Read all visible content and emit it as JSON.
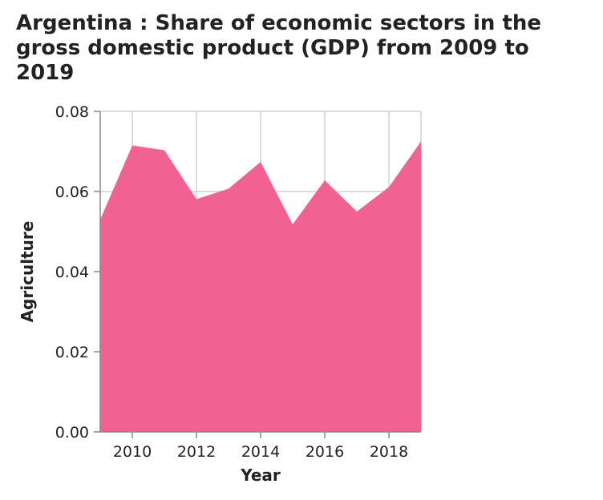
{
  "chart_data": {
    "type": "area",
    "title": "Argentina : Share of economic sectors in the gross domestic product (GDP) from 2009 to 2019",
    "xlabel": "Year",
    "ylabel": "Agriculture",
    "x": [
      2009,
      2010,
      2011,
      2012,
      2013,
      2014,
      2015,
      2016,
      2017,
      2018,
      2019
    ],
    "series": [
      {
        "values": [
          0.053,
          0.0715,
          0.0703,
          0.0581,
          0.0607,
          0.0674,
          0.0518,
          0.0628,
          0.055,
          0.0611,
          0.0725
        ]
      }
    ],
    "xlim": [
      2009,
      2019
    ],
    "ylim": [
      0,
      0.08
    ],
    "x_ticks": [
      2010,
      2012,
      2014,
      2016,
      2018
    ],
    "x_tick_labels": [
      "2010",
      "2012",
      "2014",
      "2016",
      "2018"
    ],
    "y_ticks": [
      0,
      0.02,
      0.04,
      0.06,
      0.08
    ],
    "y_tick_labels": [
      "0.00",
      "0.02",
      "0.04",
      "0.06",
      "0.08"
    ],
    "grid": true,
    "colors": {
      "area": "#f06292",
      "grid": "#d0d0d0",
      "axis": "#888888"
    }
  }
}
